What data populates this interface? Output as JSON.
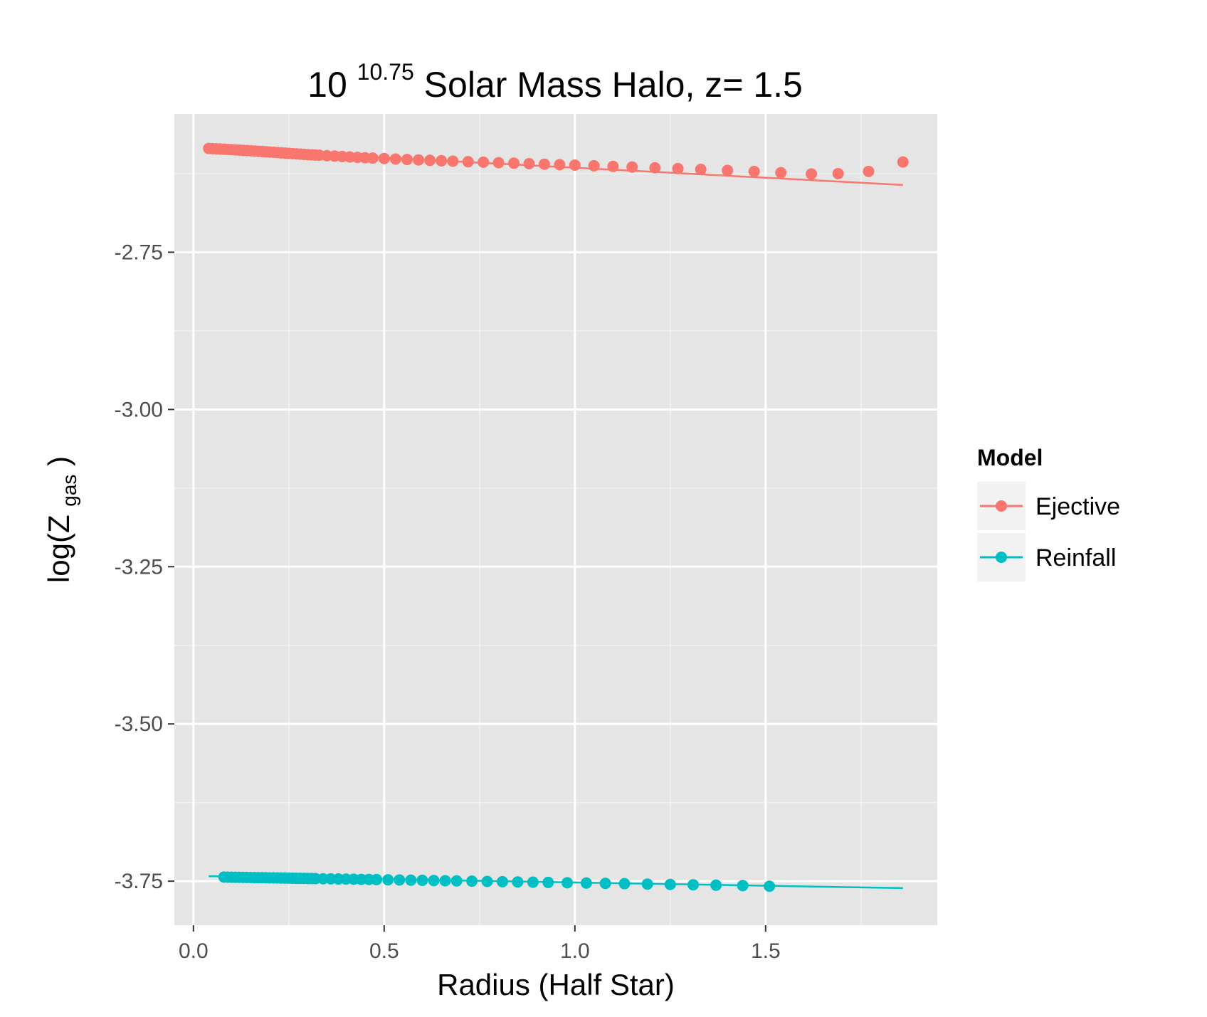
{
  "chart_data": {
    "type": "scatter",
    "title": {
      "base": "10",
      "exponent": "10.75",
      "rest": " Solar Mass Halo, z= 1.5"
    },
    "xlabel": "Radius (Half Star)",
    "ylabel": {
      "main": "log(Z",
      "sub": "gas",
      "close": ")"
    },
    "xlim": [
      -0.05,
      1.95
    ],
    "ylim": [
      -3.82,
      -2.53
    ],
    "x_ticks": [
      0.0,
      0.5,
      1.0,
      1.5
    ],
    "x_tick_labels": [
      "0.0",
      "0.5",
      "1.0",
      "1.5"
    ],
    "y_ticks": [
      -2.75,
      -3.0,
      -3.25,
      -3.5,
      -3.75
    ],
    "y_tick_labels": [
      "-2.75",
      "-3.00",
      "-3.25",
      "-3.50",
      "-3.75"
    ],
    "grid": true,
    "legend": {
      "title": "Model",
      "placement": "right"
    },
    "series": [
      {
        "name": "Ejective",
        "color": "#F8766D",
        "fit_line": {
          "x": [
            0.04,
            1.86
          ],
          "y": [
            -2.585,
            -2.643
          ]
        },
        "points": [
          [
            0.04,
            -2.585
          ],
          [
            0.05,
            -2.5853
          ],
          [
            0.06,
            -2.5856
          ],
          [
            0.07,
            -2.5859
          ],
          [
            0.08,
            -2.5862
          ],
          [
            0.09,
            -2.5866
          ],
          [
            0.1,
            -2.5869
          ],
          [
            0.11,
            -2.5873
          ],
          [
            0.12,
            -2.5876
          ],
          [
            0.13,
            -2.588
          ],
          [
            0.14,
            -2.5883
          ],
          [
            0.15,
            -2.5887
          ],
          [
            0.16,
            -2.5891
          ],
          [
            0.17,
            -2.5895
          ],
          [
            0.18,
            -2.5899
          ],
          [
            0.19,
            -2.5903
          ],
          [
            0.2,
            -2.5907
          ],
          [
            0.21,
            -2.5911
          ],
          [
            0.22,
            -2.5915
          ],
          [
            0.23,
            -2.592
          ],
          [
            0.24,
            -2.5924
          ],
          [
            0.25,
            -2.5928
          ],
          [
            0.26,
            -2.5932
          ],
          [
            0.27,
            -2.5936
          ],
          [
            0.28,
            -2.594
          ],
          [
            0.29,
            -2.5944
          ],
          [
            0.3,
            -2.5948
          ],
          [
            0.31,
            -2.5951
          ],
          [
            0.32,
            -2.5955
          ],
          [
            0.33,
            -2.5958
          ],
          [
            0.35,
            -2.5965
          ],
          [
            0.37,
            -2.5971
          ],
          [
            0.39,
            -2.5978
          ],
          [
            0.41,
            -2.5985
          ],
          [
            0.43,
            -2.5991
          ],
          [
            0.45,
            -2.5997
          ],
          [
            0.47,
            -2.6003
          ],
          [
            0.5,
            -2.601
          ],
          [
            0.53,
            -2.6018
          ],
          [
            0.56,
            -2.6025
          ],
          [
            0.59,
            -2.6032
          ],
          [
            0.62,
            -2.6039
          ],
          [
            0.65,
            -2.6046
          ],
          [
            0.68,
            -2.6052
          ],
          [
            0.72,
            -2.606
          ],
          [
            0.76,
            -2.6068
          ],
          [
            0.8,
            -2.6076
          ],
          [
            0.84,
            -2.6084
          ],
          [
            0.88,
            -2.6092
          ],
          [
            0.92,
            -2.61
          ],
          [
            0.96,
            -2.6108
          ],
          [
            1.0,
            -2.6115
          ],
          [
            1.05,
            -2.6125
          ],
          [
            1.1,
            -2.6135
          ],
          [
            1.15,
            -2.6145
          ],
          [
            1.21,
            -2.6157
          ],
          [
            1.27,
            -2.617
          ],
          [
            1.33,
            -2.6183
          ],
          [
            1.4,
            -2.6198
          ],
          [
            1.47,
            -2.6215
          ],
          [
            1.54,
            -2.6235
          ],
          [
            1.62,
            -2.6255
          ],
          [
            1.69,
            -2.625
          ],
          [
            1.77,
            -2.6215
          ],
          [
            1.86,
            -2.6065
          ]
        ]
      },
      {
        "name": "Reinfall",
        "color": "#00BFC4",
        "fit_line": {
          "x": [
            0.04,
            1.86
          ],
          "y": [
            -3.742,
            -3.761
          ]
        },
        "points": [
          [
            0.08,
            -3.7435
          ],
          [
            0.09,
            -3.7436
          ],
          [
            0.1,
            -3.7437
          ],
          [
            0.11,
            -3.7438
          ],
          [
            0.12,
            -3.7439
          ],
          [
            0.13,
            -3.744
          ],
          [
            0.14,
            -3.7441
          ],
          [
            0.15,
            -3.7442
          ],
          [
            0.16,
            -3.7443
          ],
          [
            0.17,
            -3.7444
          ],
          [
            0.18,
            -3.7445
          ],
          [
            0.19,
            -3.7446
          ],
          [
            0.2,
            -3.7447
          ],
          [
            0.21,
            -3.7448
          ],
          [
            0.22,
            -3.7449
          ],
          [
            0.23,
            -3.745
          ],
          [
            0.24,
            -3.7451
          ],
          [
            0.25,
            -3.7452
          ],
          [
            0.26,
            -3.7453
          ],
          [
            0.27,
            -3.7454
          ],
          [
            0.28,
            -3.7455
          ],
          [
            0.29,
            -3.7456
          ],
          [
            0.3,
            -3.7457
          ],
          [
            0.31,
            -3.7458
          ],
          [
            0.32,
            -3.7459
          ],
          [
            0.34,
            -3.7461
          ],
          [
            0.36,
            -3.7463
          ],
          [
            0.38,
            -3.7465
          ],
          [
            0.4,
            -3.7467
          ],
          [
            0.42,
            -3.7469
          ],
          [
            0.44,
            -3.7471
          ],
          [
            0.46,
            -3.7473
          ],
          [
            0.48,
            -3.7475
          ],
          [
            0.51,
            -3.7478
          ],
          [
            0.54,
            -3.7481
          ],
          [
            0.57,
            -3.7484
          ],
          [
            0.6,
            -3.7487
          ],
          [
            0.63,
            -3.749
          ],
          [
            0.66,
            -3.7493
          ],
          [
            0.69,
            -3.7496
          ],
          [
            0.73,
            -3.75
          ],
          [
            0.77,
            -3.7504
          ],
          [
            0.81,
            -3.7508
          ],
          [
            0.85,
            -3.7512
          ],
          [
            0.89,
            -3.7516
          ],
          [
            0.93,
            -3.752
          ],
          [
            0.98,
            -3.7525
          ],
          [
            1.03,
            -3.753
          ],
          [
            1.08,
            -3.7535
          ],
          [
            1.13,
            -3.754
          ],
          [
            1.19,
            -3.7546
          ],
          [
            1.25,
            -3.7552
          ],
          [
            1.31,
            -3.7558
          ],
          [
            1.37,
            -3.7564
          ],
          [
            1.44,
            -3.757
          ],
          [
            1.51,
            -3.758
          ]
        ]
      }
    ]
  }
}
